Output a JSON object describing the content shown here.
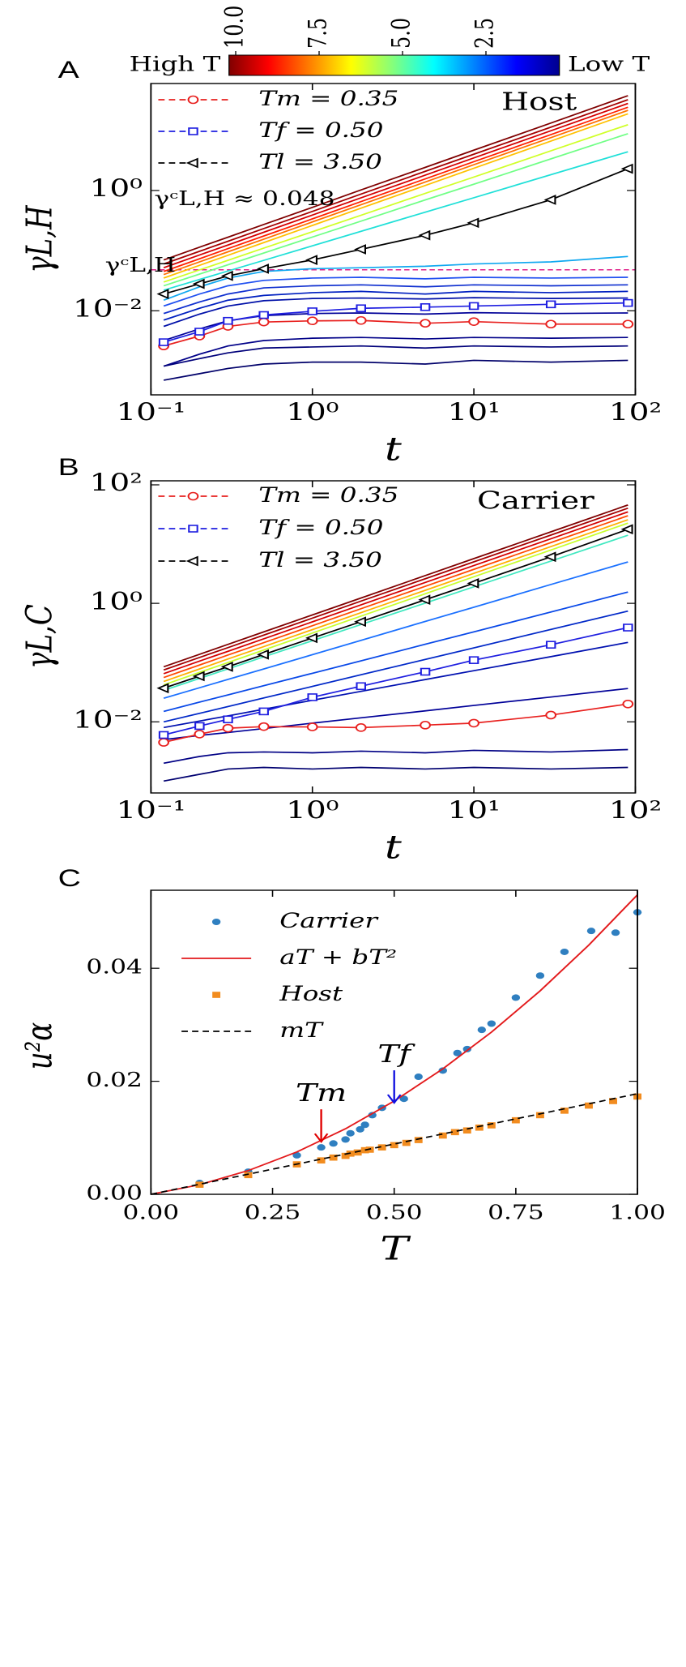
{
  "chart_data": [
    {
      "type": "line",
      "panel_label": "A",
      "label": "Host",
      "xlog": true,
      "ylog": true,
      "xlabel": "t",
      "ylabel": "γL,H",
      "xlim": [
        0.1,
        100
      ],
      "ylim": [
        0.0004,
        60
      ],
      "xticks": [
        {
          "value": 0.1,
          "label": "10⁻¹"
        },
        {
          "value": 1,
          "label": "10⁰"
        },
        {
          "value": 10,
          "label": "10¹"
        },
        {
          "value": 100,
          "label": "10²"
        }
      ],
      "yticks": [
        {
          "value": 1,
          "label": "10⁰"
        },
        {
          "value": 0.01,
          "label": "10⁻²"
        }
      ],
      "legend_linestyle": "dashed",
      "legend_text_colored": true,
      "colorbar": {
        "colormap": "jet",
        "clim": [
          10.2,
          0.3
        ],
        "high_label": "High T",
        "low_label": "Low T",
        "ticks": [
          {
            "value": 10,
            "label": "10.0"
          },
          7.5,
          {
            "value": 5,
            "label": "5.0"
          },
          2.5
        ]
      },
      "hline": {
        "y": 0.048,
        "color": "#e0208a"
      },
      "annotations": [
        {
          "text": "γᶜL,H ≈ 0.048",
          "x": 0.105,
          "y": 0.7,
          "color": "#e0208a"
        },
        {
          "text": "γᶜL,H",
          "x": 0.052,
          "y": 0.055,
          "color": "#e0208a"
        }
      ],
      "x": [
        0.12,
        0.2,
        0.3,
        0.5,
        1,
        2,
        5,
        10,
        30,
        90
      ],
      "series": [
        {
          "color": "#7f0000",
          "values": [
            0.07,
            0.114,
            0.167,
            0.272,
            0.524,
            1.02,
            2.42,
            4.68,
            13.2,
            37.7
          ]
        },
        {
          "color": "#a50000",
          "values": [
            0.06,
            0.0975,
            0.143,
            0.233,
            0.449,
            0.87,
            2.08,
            4.01,
            11.3,
            32.3
          ]
        },
        {
          "color": "#d40000",
          "values": [
            0.052,
            0.0845,
            0.124,
            0.202,
            0.39,
            0.754,
            1.8,
            3.48,
            9.83,
            28
          ]
        },
        {
          "color": "#ff2000",
          "values": [
            0.045,
            0.0731,
            0.108,
            0.175,
            0.337,
            0.653,
            1.56,
            3.01,
            8.5,
            24.2
          ]
        },
        {
          "color": "#ff7000",
          "values": [
            0.04,
            0.065,
            0.0956,
            0.155,
            0.3,
            0.58,
            1.38,
            2.68,
            7.56,
            21.5
          ]
        },
        {
          "color": "#ffc000",
          "values": [
            0.035,
            0.0569,
            0.0837,
            0.136,
            0.262,
            0.508,
            1.21,
            2.34,
            6.62,
            18.8
          ]
        },
        {
          "color": "#d0ff28",
          "values": [
            0.03,
            0.0478,
            0.069,
            0.11,
            0.206,
            0.387,
            0.894,
            1.67,
            4.56,
            12.4
          ]
        },
        {
          "color": "#70ff86",
          "values": [
            0.026,
            0.0407,
            0.0582,
            0.0913,
            0.168,
            0.309,
            0.697,
            1.27,
            3.35,
            8.8
          ]
        },
        {
          "color": "#20e0d8",
          "values": [
            0.022,
            0.0331,
            0.0458,
            0.0689,
            0.12,
            0.209,
            0.436,
            0.757,
            1.83,
            4.4
          ]
        },
        {
          "color": "#10a8f0",
          "values": [
            0.015,
            0.025,
            0.035,
            0.045,
            0.05,
            0.052,
            0.055,
            0.06,
            0.065,
            0.08
          ]
        },
        {
          "color": "#2050f0",
          "values": [
            0.012,
            0.019,
            0.026,
            0.032,
            0.035,
            0.036,
            0.034,
            0.036,
            0.035,
            0.036
          ]
        },
        {
          "color": "#1030d0",
          "values": [
            0.009,
            0.014,
            0.019,
            0.024,
            0.026,
            0.027,
            0.025,
            0.027,
            0.026,
            0.027
          ]
        },
        {
          "color": "#0020c0",
          "values": [
            0.007,
            0.011,
            0.015,
            0.018,
            0.02,
            0.021,
            0.019,
            0.021,
            0.02,
            0.021
          ]
        },
        {
          "color": "#0010a8",
          "values": [
            0.0055,
            0.0088,
            0.012,
            0.0147,
            0.016,
            0.0163,
            0.0157,
            0.0165,
            0.016,
            0.0163
          ]
        },
        {
          "color": "#000098",
          "values": [
            0.0032,
            0.005,
            0.0068,
            0.0083,
            0.009,
            0.0092,
            0.0088,
            0.0093,
            0.009,
            0.0092
          ]
        },
        {
          "color": "#000088",
          "values": [
            0.0012,
            0.0019,
            0.0026,
            0.0032,
            0.0035,
            0.0036,
            0.0034,
            0.0036,
            0.0035,
            0.0036
          ]
        },
        {
          "color": "#00007a",
          "values": [
            0.0012,
            0.0016,
            0.002,
            0.0024,
            0.0025,
            0.0026,
            0.0024,
            0.0026,
            0.0025,
            0.0026
          ]
        },
        {
          "color": "#00006a",
          "values": [
            0.0007,
            0.0009,
            0.0011,
            0.0013,
            0.0014,
            0.0014,
            0.0013,
            0.0015,
            0.0014,
            0.0015
          ]
        },
        {
          "name": "Tm = 0.35",
          "color": "#e8211f",
          "marker": "circle",
          "values": [
            0.0026,
            0.0038,
            0.0055,
            0.0065,
            0.0068,
            0.0069,
            0.0062,
            0.0066,
            0.006,
            0.006
          ]
        },
        {
          "name": "Tf = 0.50",
          "color": "#1f1fe0",
          "marker": "square",
          "values": [
            0.003,
            0.0045,
            0.0068,
            0.0085,
            0.0098,
            0.011,
            0.0115,
            0.012,
            0.0128,
            0.0135
          ]
        },
        {
          "name": "Tl = 3.50",
          "color": "#000000",
          "marker": "triangle",
          "values": [
            0.019,
            0.028,
            0.038,
            0.05,
            0.07,
            0.105,
            0.18,
            0.29,
            0.7,
            2.3
          ]
        }
      ]
    },
    {
      "type": "line",
      "panel_label": "B",
      "label": "Carrier",
      "xlog": true,
      "ylog": true,
      "xlabel": "t",
      "ylabel": "γL,C",
      "xlim": [
        0.1,
        100
      ],
      "ylim": [
        0.00063,
        117
      ],
      "xticks": [
        {
          "value": 0.1,
          "label": "10⁻¹"
        },
        {
          "value": 1,
          "label": "10⁰"
        },
        {
          "value": 10,
          "label": "10¹"
        },
        {
          "value": 100,
          "label": "10²"
        }
      ],
      "yticks": [
        {
          "value": 100,
          "label": "10²"
        },
        {
          "value": 1,
          "label": "10⁰"
        },
        {
          "value": 0.01,
          "label": "10⁻²"
        }
      ],
      "legend_linestyle": "dashed",
      "legend_text_colored": true,
      "x": [
        0.12,
        0.2,
        0.3,
        0.5,
        1,
        2,
        5,
        10,
        30,
        90
      ],
      "series": [
        {
          "color": "#7f0000",
          "values": [
            0.085,
            0.138,
            0.203,
            0.33,
            0.637,
            1.23,
            2.94,
            5.69,
            16.1,
            45.7
          ]
        },
        {
          "color": "#a50000",
          "values": [
            0.075,
            0.122,
            0.179,
            0.291,
            0.562,
            1.09,
            2.6,
            5.02,
            14.2,
            40.4
          ]
        },
        {
          "color": "#d40000",
          "values": [
            0.065,
            0.106,
            0.155,
            0.252,
            0.487,
            0.943,
            2.25,
            4.35,
            12.3,
            35
          ]
        },
        {
          "color": "#ff4a00",
          "values": [
            0.056,
            0.091,
            0.134,
            0.217,
            0.419,
            0.812,
            1.94,
            3.75,
            10.6,
            30.1
          ]
        },
        {
          "color": "#ffb000",
          "values": [
            0.048,
            0.078,
            0.115,
            0.186,
            0.36,
            0.696,
            1.66,
            3.21,
            9.07,
            25.8
          ]
        },
        {
          "color": "#c8ff30",
          "values": [
            0.042,
            0.0683,
            0.1,
            0.163,
            0.315,
            0.609,
            1.45,
            2.81,
            7.94,
            22.6
          ]
        },
        {
          "color": "#40e8c0",
          "values": [
            0.034,
            0.0541,
            0.0782,
            0.125,
            0.234,
            0.439,
            1.01,
            1.9,
            5.17,
            14.1
          ]
        },
        {
          "color": "#1a70ff",
          "values": [
            0.025,
            0.0376,
            0.052,
            0.078,
            0.136,
            0.237,
            0.495,
            0.86,
            2.08,
            5
          ]
        },
        {
          "color": "#0848e8",
          "values": [
            0.015,
            0.0215,
            0.0285,
            0.0408,
            0.066,
            0.107,
            0.204,
            0.33,
            0.714,
            1.55
          ]
        },
        {
          "color": "#0028c8",
          "values": [
            0.01,
            0.0139,
            0.0181,
            0.0253,
            0.0396,
            0.0623,
            0.113,
            0.177,
            0.363,
            0.74
          ]
        },
        {
          "color": "#0010b0",
          "values": [
            0.008,
            0.0103,
            0.0126,
            0.0163,
            0.0231,
            0.0327,
            0.0517,
            0.073,
            0.126,
            0.219
          ]
        },
        {
          "color": "#000098",
          "values": [
            0.005,
            0.0059,
            0.0066,
            0.0077,
            0.0095,
            0.0117,
            0.0153,
            0.0189,
            0.0262,
            0.0365
          ]
        },
        {
          "color": "#000085",
          "values": [
            0.002,
            0.0026,
            0.003,
            0.0031,
            0.003,
            0.0032,
            0.003,
            0.0033,
            0.0031,
            0.0034
          ]
        },
        {
          "color": "#000070",
          "values": [
            0.001,
            0.0013,
            0.0016,
            0.0017,
            0.0016,
            0.0017,
            0.0016,
            0.0017,
            0.0016,
            0.0017
          ]
        },
        {
          "name": "Tm = 0.35",
          "color": "#e8211f",
          "marker": "circle",
          "values": [
            0.0045,
            0.0062,
            0.0078,
            0.0083,
            0.0082,
            0.008,
            0.0088,
            0.0095,
            0.013,
            0.02
          ]
        },
        {
          "name": "Tf = 0.50",
          "color": "#1f1fe0",
          "marker": "square",
          "values": [
            0.006,
            0.0085,
            0.011,
            0.015,
            0.026,
            0.04,
            0.07,
            0.11,
            0.2,
            0.39
          ]
        },
        {
          "name": "Tl = 3.50",
          "color": "#000000",
          "marker": "triangle",
          "values": [
            0.037,
            0.059,
            0.085,
            0.137,
            0.26,
            0.49,
            1.15,
            2.18,
            6.1,
            17.8
          ]
        }
      ]
    },
    {
      "type": "scatter",
      "panel_label": "C",
      "xlabel": "T",
      "ylabel": "u²α",
      "xlim": [
        0,
        1
      ],
      "ylim": [
        0,
        0.0538
      ],
      "xticks": [
        {
          "value": 0,
          "label": "0.00"
        },
        {
          "value": 0.25,
          "label": "0.25"
        },
        {
          "value": 0.5,
          "label": "0.50"
        },
        {
          "value": 0.75,
          "label": "0.75"
        },
        {
          "value": 1,
          "label": "1.00"
        }
      ],
      "yticks": [
        {
          "value": 0,
          "label": "0.00"
        },
        {
          "value": 0.02,
          "label": "0.02"
        },
        {
          "value": 0.04,
          "label": "0.04"
        }
      ],
      "annotations": [
        {
          "text": "Tm",
          "x": 0.35,
          "y": 0.0093,
          "color": "#e00000",
          "arrow": true
        },
        {
          "text": "Tf",
          "x": 0.5,
          "y": 0.0162,
          "color": "#1010e0",
          "arrow": true
        }
      ],
      "series": [
        {
          "name": "Carrier",
          "color": "#2f7fc0",
          "style": "points",
          "marker": "dot",
          "x": [
            0.1,
            0.2,
            0.3,
            0.35,
            0.375,
            0.4,
            0.41,
            0.43,
            0.44,
            0.455,
            0.475,
            0.52,
            0.55,
            0.6,
            0.63,
            0.65,
            0.68,
            0.7,
            0.75,
            0.8,
            0.85,
            0.905,
            0.955,
            1.0
          ],
          "values": [
            0.002,
            0.004,
            0.0069,
            0.0083,
            0.009,
            0.0097,
            0.0108,
            0.0115,
            0.0123,
            0.014,
            0.0153,
            0.0169,
            0.0208,
            0.0219,
            0.025,
            0.0257,
            0.0291,
            0.0302,
            0.0348,
            0.0387,
            0.0429,
            0.0466,
            0.0463,
            0.0499
          ]
        },
        {
          "name": "aT + bT²",
          "color": "#e31a1c",
          "style": "line",
          "x": [
            0,
            0.1,
            0.2,
            0.3,
            0.4,
            0.5,
            0.6,
            0.7,
            0.8,
            0.9,
            1.0
          ],
          "values": [
            0,
            0.0017,
            0.0042,
            0.0075,
            0.0116,
            0.0165,
            0.0222,
            0.0287,
            0.036,
            0.0441,
            0.053
          ]
        },
        {
          "name": "Host",
          "color": "#f28c1f",
          "style": "points",
          "marker": "filled-square",
          "x": [
            0.1,
            0.2,
            0.3,
            0.35,
            0.375,
            0.4,
            0.41,
            0.425,
            0.44,
            0.45,
            0.475,
            0.5,
            0.525,
            0.55,
            0.6,
            0.625,
            0.65,
            0.675,
            0.7,
            0.75,
            0.8,
            0.85,
            0.9,
            0.95,
            1.0
          ],
          "values": [
            0.0017,
            0.0034,
            0.0053,
            0.006,
            0.0065,
            0.0068,
            0.0072,
            0.0074,
            0.0078,
            0.0079,
            0.0083,
            0.0087,
            0.0091,
            0.0096,
            0.0104,
            0.011,
            0.0113,
            0.0118,
            0.0122,
            0.0131,
            0.014,
            0.0148,
            0.0157,
            0.0165,
            0.0173
          ]
        },
        {
          "name": "mT",
          "color": "#000000",
          "style": "line",
          "linestyle": "dashed",
          "x": [
            0,
            1
          ],
          "values": [
            0,
            0.0178
          ]
        }
      ]
    }
  ]
}
